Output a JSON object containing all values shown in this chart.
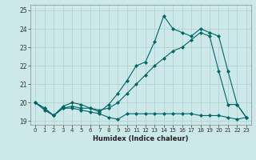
{
  "xlabel": "Humidex (Indice chaleur)",
  "ylabel": "",
  "bg_color": "#cce8e8",
  "grid_color": "#aacfcf",
  "line_color": "#006666",
  "x": [
    0,
    1,
    2,
    3,
    4,
    5,
    6,
    7,
    8,
    9,
    10,
    11,
    12,
    13,
    14,
    15,
    16,
    17,
    18,
    19,
    20,
    21,
    22,
    23
  ],
  "line1": [
    20.0,
    19.6,
    19.3,
    19.7,
    19.7,
    19.6,
    19.5,
    19.4,
    19.2,
    19.1,
    19.4,
    19.4,
    19.4,
    19.4,
    19.4,
    19.4,
    19.4,
    19.4,
    19.3,
    19.3,
    19.3,
    19.2,
    19.1,
    19.2
  ],
  "line2": [
    20.0,
    19.7,
    19.3,
    19.7,
    19.8,
    19.7,
    19.7,
    19.6,
    19.7,
    20.0,
    20.5,
    21.0,
    21.5,
    22.0,
    22.4,
    22.8,
    23.0,
    23.4,
    23.8,
    23.6,
    21.7,
    19.9,
    19.9,
    19.2
  ],
  "line3": [
    20.0,
    19.7,
    19.3,
    19.8,
    20.0,
    19.9,
    19.7,
    19.5,
    19.9,
    20.5,
    21.2,
    22.0,
    22.2,
    23.3,
    24.7,
    24.0,
    23.8,
    23.6,
    24.0,
    23.8,
    23.6,
    21.7,
    19.9,
    19.2
  ],
  "ylim": [
    18.8,
    25.3
  ],
  "yticks": [
    19,
    20,
    21,
    22,
    23,
    24,
    25
  ],
  "xticks": [
    0,
    1,
    2,
    3,
    4,
    5,
    6,
    7,
    8,
    9,
    10,
    11,
    12,
    13,
    14,
    15,
    16,
    17,
    18,
    19,
    20,
    21,
    22,
    23
  ],
  "marker": "D",
  "markersize": 2.0,
  "linewidth": 0.8
}
